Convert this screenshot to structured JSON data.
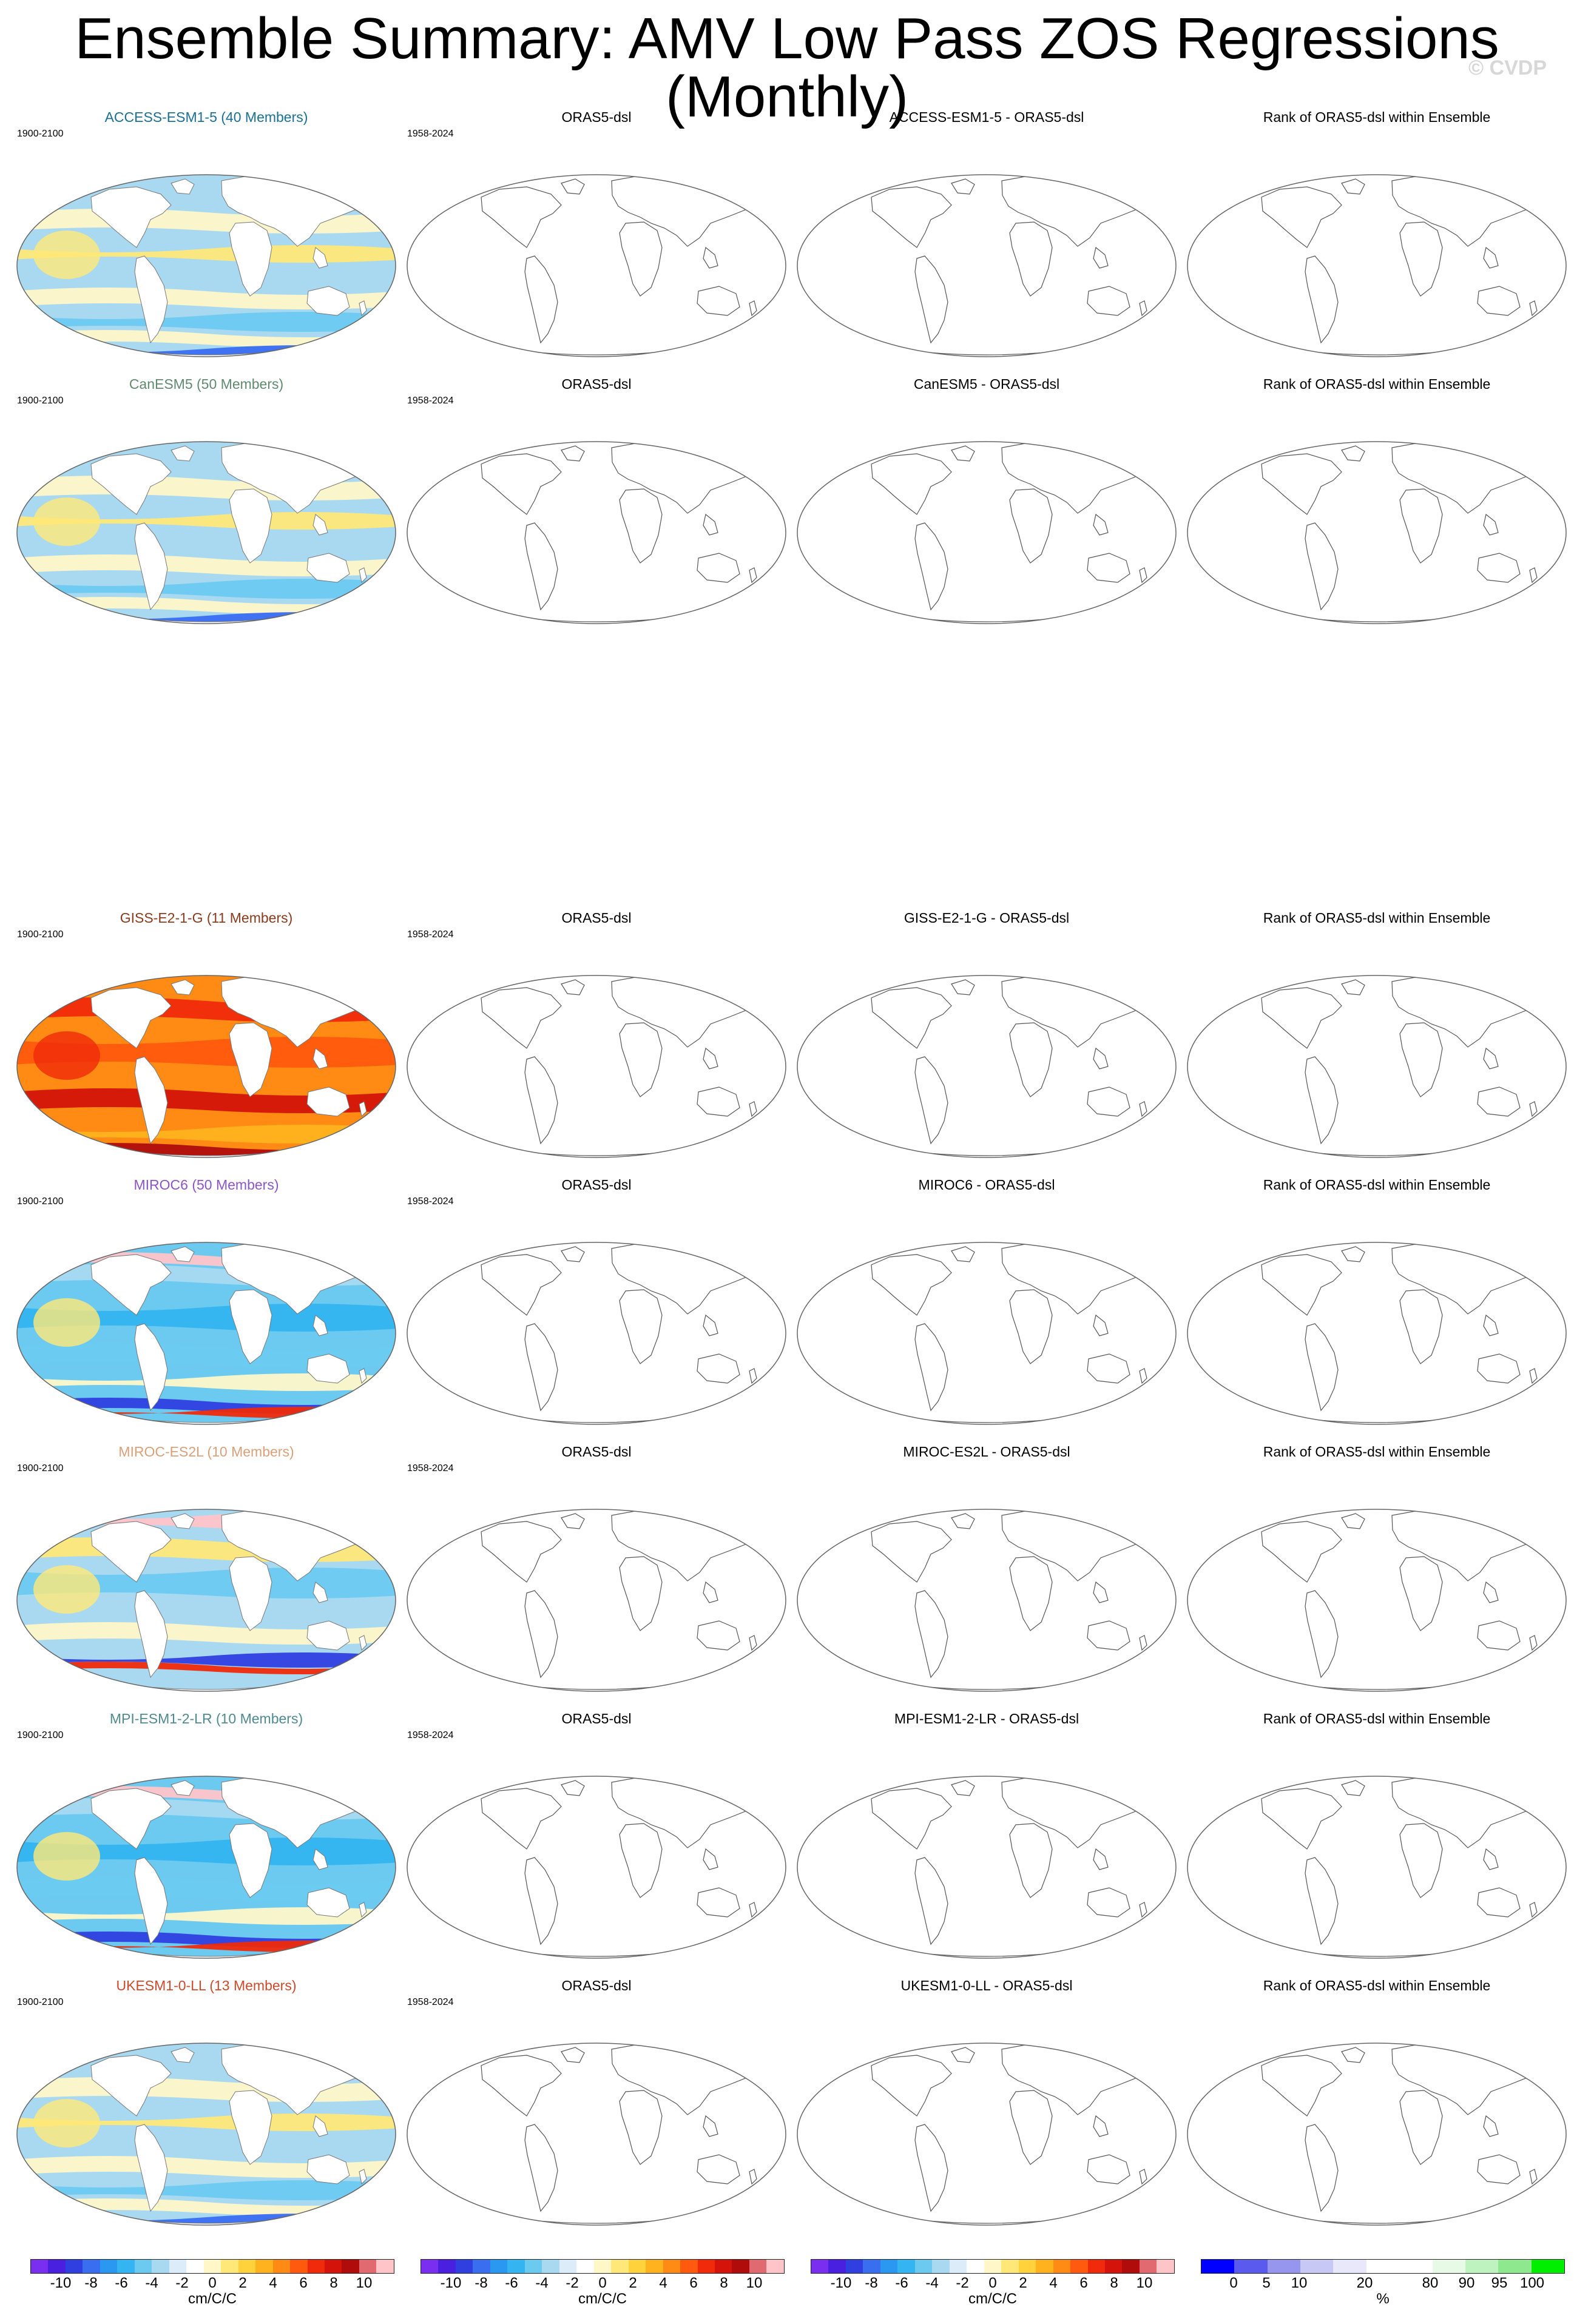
{
  "title": "Ensemble Summary: AMV Low Pass ZOS Regressions (Monthly)",
  "watermark": "© CVDP",
  "rows": [
    {
      "model": "ACCESS-ESM1-5 (40 Members)",
      "diff": "ACCESS-ESM1-5 - ORAS5-dsl",
      "color": "#1a6f96",
      "style": "mixed"
    },
    {
      "model": "CanESM5 (50 Members)",
      "diff": "CanESM5 - ORAS5-dsl",
      "color": "#5f8a6f",
      "style": "mixed"
    },
    {
      "model": "GISS-E2-1-G (11 Members)",
      "diff": "GISS-E2-1-G - ORAS5-dsl",
      "color": "#8a3b1e",
      "style": "warm"
    },
    {
      "model": "MIROC6 (50 Members)",
      "diff": "MIROC6 - ORAS5-dsl",
      "color": "#8b55c8",
      "style": "cool"
    },
    {
      "model": "MIROC-ES2L (10 Members)",
      "diff": "MIROC-ES2L - ORAS5-dsl",
      "color": "#d9a07a",
      "style": "coolmix"
    },
    {
      "model": "MPI-ESM1-2-LR (10 Members)",
      "diff": "MPI-ESM1-2-LR - ORAS5-dsl",
      "color": "#4f8a8e",
      "style": "cool"
    },
    {
      "model": "UKESM1-0-LL (13 Members)",
      "diff": "UKESM1-0-LL - ORAS5-dsl",
      "color": "#cf4a2a",
      "style": "mixed"
    }
  ],
  "model_period": "1900-2100",
  "obs_period": "1958-2024",
  "obs_title": "ORAS5-dsl",
  "rank_title": "Rank of ORAS5-dsl within Ensemble",
  "colorbars": [
    {
      "unit": "cm/C/C",
      "ticks": [
        "-10",
        "-8",
        "-6",
        "-4",
        "-2",
        "0",
        "2",
        "4",
        "6",
        "8",
        "10"
      ],
      "colors": [
        "#7a2ef0",
        "#4a20e0",
        "#2f3fe0",
        "#3a6ef0",
        "#2a98f0",
        "#34b4f0",
        "#6ccaf0",
        "#a8d9f0",
        "#dcecf8",
        "#ffffff",
        "#fff7c8",
        "#ffe878",
        "#ffd23c",
        "#ffb21e",
        "#ff8a14",
        "#ff5a0e",
        "#f02a0a",
        "#d4140a",
        "#b00c0c",
        "#e06a70",
        "#ffc4c8"
      ]
    },
    {
      "unit": "cm/C/C",
      "ticks": [
        "-10",
        "-8",
        "-6",
        "-4",
        "-2",
        "0",
        "2",
        "4",
        "6",
        "8",
        "10"
      ],
      "colors": [
        "#7a2ef0",
        "#4a20e0",
        "#2f3fe0",
        "#3a6ef0",
        "#2a98f0",
        "#34b4f0",
        "#6ccaf0",
        "#a8d9f0",
        "#dcecf8",
        "#ffffff",
        "#fff7c8",
        "#ffe878",
        "#ffd23c",
        "#ffb21e",
        "#ff8a14",
        "#ff5a0e",
        "#f02a0a",
        "#d4140a",
        "#b00c0c",
        "#e06a70",
        "#ffc4c8"
      ]
    },
    {
      "unit": "cm/C/C",
      "ticks": [
        "-10",
        "-8",
        "-6",
        "-4",
        "-2",
        "0",
        "2",
        "4",
        "6",
        "8",
        "10"
      ],
      "colors": [
        "#7a2ef0",
        "#4a20e0",
        "#2f3fe0",
        "#3a6ef0",
        "#2a98f0",
        "#34b4f0",
        "#6ccaf0",
        "#a8d9f0",
        "#dcecf8",
        "#ffffff",
        "#fff7c8",
        "#ffe878",
        "#ffd23c",
        "#ffb21e",
        "#ff8a14",
        "#ff5a0e",
        "#f02a0a",
        "#d4140a",
        "#b00c0c",
        "#e06a70",
        "#ffc4c8"
      ]
    },
    {
      "unit": "%",
      "ticks": [
        "0",
        "5",
        "10",
        "20",
        "80",
        "90",
        "95",
        "100"
      ],
      "colors": [
        "#0000ff",
        "#5a5aee",
        "#9696ee",
        "#c8c8f4",
        "#e8e8fa",
        "#ffffff",
        "#ffffff",
        "#e6fae6",
        "#bef2be",
        "#8ee88e",
        "#00ee00"
      ]
    }
  ]
}
